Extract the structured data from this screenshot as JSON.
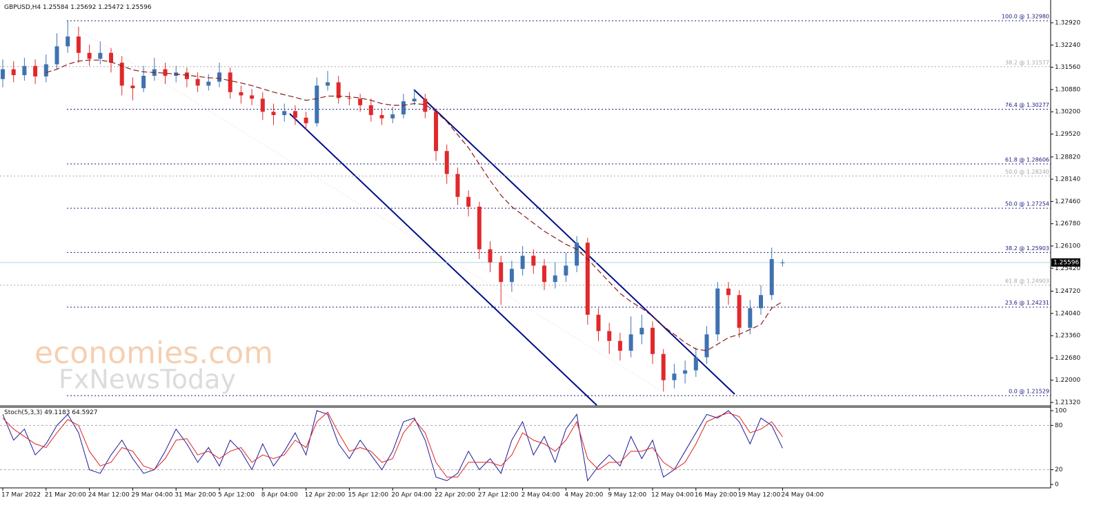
{
  "chart_data": {
    "type": "candlestick",
    "title": "GBPUSD,H4",
    "categories": [
      "17 Mar 2022",
      null,
      null,
      null,
      "21 Mar 20:00",
      null,
      null,
      null,
      "24 Mar 12:00",
      null,
      null,
      null,
      "29 Mar 04:00",
      null,
      null,
      null,
      "31 Mar 20:00",
      null,
      null,
      null,
      "5 Apr 12:00",
      null,
      null,
      null,
      "8 Apr 04:00",
      null,
      null,
      null,
      "12 Apr 20:00",
      null,
      null,
      null,
      "15 Apr 12:00",
      null,
      null,
      null,
      "20 Apr 04:00",
      null,
      null,
      null,
      "22 Apr 20:00",
      null,
      null,
      null,
      "27 Apr 12:00",
      null,
      null,
      null,
      "2 May 04:00",
      null,
      null,
      null,
      "4 May 20:00",
      null,
      null,
      null,
      "9 May 12:00",
      null,
      null,
      null,
      "12 May 04:00",
      null,
      null,
      null,
      "16 May 20:00",
      null,
      null,
      null,
      "19 May 12:00",
      null,
      null,
      null,
      "24 May 04:00"
    ],
    "open": [
      1.312,
      1.315,
      1.3132,
      1.316,
      1.3128,
      1.3165,
      1.322,
      1.325,
      1.32,
      1.3182,
      1.32,
      1.317,
      1.31,
      1.3092,
      1.313,
      1.315,
      1.313,
      1.314,
      1.312,
      1.31,
      1.3112,
      1.314,
      1.308,
      1.307,
      1.306,
      1.302,
      1.301,
      1.3022,
      1.3002,
      1.2985,
      1.31,
      1.311,
      1.3062,
      1.306,
      1.304,
      1.301,
      1.3,
      1.3012,
      1.3052,
      1.306,
      1.302,
      1.29,
      1.283,
      1.276,
      1.273,
      1.26,
      1.256,
      1.25,
      1.254,
      1.258,
      1.255,
      1.25,
      1.252,
      1.255,
      1.262,
      1.24,
      1.235,
      1.232,
      1.229,
      1.234,
      1.236,
      1.228,
      1.22,
      1.222,
      1.223,
      1.227,
      1.234,
      1.248,
      1.246,
      1.236,
      1.242,
      1.246,
      1.25584
    ],
    "high": [
      1.318,
      1.3175,
      1.3185,
      1.318,
      1.3195,
      1.326,
      1.3298,
      1.328,
      1.3225,
      1.3235,
      1.3215,
      1.319,
      1.3125,
      1.316,
      1.3185,
      1.317,
      1.316,
      1.3155,
      1.314,
      1.3135,
      1.317,
      1.3155,
      1.31,
      1.309,
      1.308,
      1.3045,
      1.3045,
      1.304,
      1.302,
      1.3125,
      1.3145,
      1.313,
      1.308,
      1.3075,
      1.306,
      1.303,
      1.3035,
      1.3075,
      1.3088,
      1.3075,
      1.303,
      1.292,
      1.285,
      1.278,
      1.2745,
      1.2625,
      1.258,
      1.2565,
      1.261,
      1.26,
      1.257,
      1.256,
      1.259,
      1.264,
      1.2635,
      1.242,
      1.2375,
      1.2345,
      1.2395,
      1.24,
      1.238,
      1.2295,
      1.225,
      1.226,
      1.23,
      1.2365,
      1.25,
      1.25,
      1.2475,
      1.2445,
      1.249,
      1.2605,
      1.25692
    ],
    "low": [
      1.3095,
      1.311,
      1.3115,
      1.3105,
      1.311,
      1.315,
      1.32,
      1.317,
      1.316,
      1.3165,
      1.314,
      1.307,
      1.3055,
      1.308,
      1.3115,
      1.3105,
      1.311,
      1.3095,
      1.308,
      1.3085,
      1.3095,
      1.306,
      1.3045,
      1.304,
      1.2995,
      1.298,
      1.299,
      1.298,
      1.2965,
      1.2975,
      1.3085,
      1.3045,
      1.304,
      1.302,
      1.299,
      1.298,
      1.2985,
      1.3,
      1.304,
      1.3,
      1.287,
      1.28,
      1.2735,
      1.27,
      1.257,
      1.253,
      1.243,
      1.247,
      1.252,
      1.2525,
      1.2475,
      1.248,
      1.25,
      1.253,
      1.237,
      1.232,
      1.228,
      1.226,
      1.227,
      1.231,
      1.225,
      1.2165,
      1.2175,
      1.219,
      1.221,
      1.225,
      1.232,
      1.243,
      1.233,
      1.234,
      1.24,
      1.2445,
      1.25472
    ],
    "close": [
      1.315,
      1.3132,
      1.316,
      1.3128,
      1.3165,
      1.322,
      1.325,
      1.32,
      1.3182,
      1.32,
      1.317,
      1.31,
      1.3092,
      1.313,
      1.315,
      1.313,
      1.314,
      1.312,
      1.31,
      1.3112,
      1.314,
      1.308,
      1.307,
      1.306,
      1.302,
      1.301,
      1.3022,
      1.3002,
      1.2985,
      1.31,
      1.311,
      1.3062,
      1.306,
      1.304,
      1.301,
      1.3,
      1.3012,
      1.3052,
      1.306,
      1.302,
      1.29,
      1.283,
      1.276,
      1.273,
      1.26,
      1.256,
      1.25,
      1.254,
      1.258,
      1.255,
      1.25,
      1.252,
      1.255,
      1.262,
      1.24,
      1.235,
      1.232,
      1.229,
      1.234,
      1.236,
      1.228,
      1.22,
      1.222,
      1.223,
      1.227,
      1.234,
      1.248,
      1.246,
      1.236,
      1.242,
      1.246,
      1.257,
      1.25596
    ],
    "up_color": "#3f72b0",
    "down_color": "#e0292b",
    "ylim": [
      1.21236,
      1.33573
    ],
    "yticks": [
      {
        "value": 1.3292,
        "label": "1.32920"
      },
      {
        "value": 1.3224,
        "label": "1.32240"
      },
      {
        "value": 1.3156,
        "label": "1.31560"
      },
      {
        "value": 1.3088,
        "label": "1.30880"
      },
      {
        "value": 1.302,
        "label": "1.30200"
      },
      {
        "value": 1.2952,
        "label": "1.29520"
      },
      {
        "value": 1.2882,
        "label": "1.28820"
      },
      {
        "value": 1.2814,
        "label": "1.28140"
      },
      {
        "value": 1.2746,
        "label": "1.27460"
      },
      {
        "value": 1.2678,
        "label": "1.26780"
      },
      {
        "value": 1.261,
        "label": "1.26100"
      },
      {
        "value": 1.2542,
        "label": "1.25420"
      },
      {
        "value": 1.2472,
        "label": "1.24720"
      },
      {
        "value": 1.2404,
        "label": "1.24040"
      },
      {
        "value": 1.2336,
        "label": "1.23360"
      },
      {
        "value": 1.2268,
        "label": "1.22680"
      },
      {
        "value": 1.22,
        "label": "1.22000"
      },
      {
        "value": 1.2132,
        "label": "1.21320"
      }
    ],
    "ma": {
      "color": "#8b1a1a",
      "values": [
        null,
        null,
        null,
        null,
        1.314,
        1.315,
        1.3165,
        1.3175,
        1.3178,
        1.3178,
        1.3172,
        1.316,
        1.3148,
        1.3142,
        1.314,
        1.3138,
        1.3135,
        1.3132,
        1.3128,
        1.3124,
        1.3122,
        1.3115,
        1.3108,
        1.31,
        1.309,
        1.308,
        1.3072,
        1.3064,
        1.3055,
        1.306,
        1.3068,
        1.3068,
        1.3066,
        1.3062,
        1.3055,
        1.3045,
        1.304,
        1.304,
        1.3045,
        1.3042,
        1.302,
        1.299,
        1.295,
        1.291,
        1.286,
        1.281,
        1.2765,
        1.273,
        1.2705,
        1.268,
        1.2655,
        1.2635,
        1.2615,
        1.26,
        1.257,
        1.2535,
        1.25,
        1.2465,
        1.244,
        1.242,
        1.2395,
        1.2365,
        1.234,
        1.2315,
        1.2295,
        1.229,
        1.231,
        1.233,
        1.234,
        1.2355,
        1.237,
        1.242,
        1.244
      ]
    },
    "levels": [
      {
        "label": "100.0 @ 1.32980",
        "value": 1.3298,
        "color": "#1a1a7a"
      },
      {
        "label": "38.2 @ 1.31577",
        "value": 1.31577,
        "color": "#a8a8a8"
      },
      {
        "label": "76.4 @ 1.30277",
        "value": 1.30277,
        "color": "#1a1a7a"
      },
      {
        "label": "61.8 @ 1.28606",
        "value": 1.28606,
        "color": "#1a1a7a"
      },
      {
        "label": "50.0 @ 1.28240",
        "value": 1.2824,
        "color": "#a8a8a8"
      },
      {
        "label": "50.0 @ 1.27254",
        "value": 1.27254,
        "color": "#1a1a7a"
      },
      {
        "label": "38.2 @ 1.25903",
        "value": 1.25903,
        "color": "#1a1a7a"
      },
      {
        "label": "61.8 @ 1.24903",
        "value": 1.24903,
        "color": "#a8a8a8"
      },
      {
        "label": "23.6 @ 1.24231",
        "value": 1.24231,
        "color": "#1a1a7a"
      },
      {
        "label": "0.0 @ 1.21529",
        "value": 1.21529,
        "color": "#1a1a7a"
      }
    ],
    "price_line_color": "#a8d8e8",
    "stoch": {
      "title": "Stoch(5,3,3)",
      "ylim": [
        -4.7,
        103.7
      ],
      "yticks": [
        100,
        80,
        20,
        0
      ],
      "levels": [
        80,
        20
      ],
      "series": [
        {
          "color": "#1a1a9a",
          "values": [
            95,
            60,
            75,
            40,
            55,
            80,
            95,
            70,
            20,
            15,
            40,
            60,
            35,
            15,
            20,
            45,
            75,
            55,
            30,
            50,
            25,
            60,
            45,
            20,
            55,
            25,
            45,
            70,
            40,
            100,
            95,
            55,
            35,
            60,
            40,
            20,
            45,
            85,
            90,
            60,
            10,
            5,
            15,
            45,
            20,
            35,
            15,
            60,
            85,
            40,
            65,
            30,
            75,
            95,
            5,
            25,
            40,
            25,
            65,
            35,
            60,
            10,
            20,
            45,
            70,
            95,
            90,
            100,
            85,
            55,
            90,
            80,
            49.1183
          ]
        },
        {
          "color": "#e02020",
          "values": [
            90,
            75,
            65,
            55,
            50,
            70,
            88,
            80,
            45,
            25,
            30,
            50,
            45,
            25,
            20,
            35,
            60,
            62,
            40,
            45,
            35,
            45,
            50,
            30,
            40,
            35,
            40,
            60,
            50,
            85,
            98,
            70,
            45,
            50,
            45,
            30,
            35,
            70,
            88,
            70,
            30,
            10,
            10,
            30,
            30,
            30,
            25,
            40,
            70,
            60,
            55,
            45,
            60,
            85,
            35,
            20,
            30,
            30,
            45,
            45,
            50,
            30,
            20,
            30,
            55,
            85,
            92,
            97,
            92,
            70,
            75,
            85,
            64.5927
          ]
        }
      ]
    },
    "watermark": [
      "economies.com",
      "FxNewsToday"
    ]
  }
}
